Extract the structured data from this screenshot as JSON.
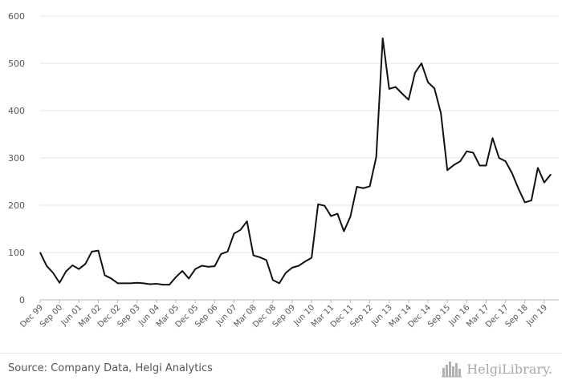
{
  "chart_data": {
    "type": "line",
    "title": "",
    "xlabel": "",
    "ylabel": "",
    "ylim": [
      0,
      600
    ],
    "yticks": [
      0,
      100,
      200,
      300,
      400,
      500,
      600
    ],
    "grid": true,
    "legend": "none",
    "x_tick_labels": [
      "Dec 99",
      "Sep 00",
      "Jun 01",
      "Mar 02",
      "Dec 02",
      "Sep 03",
      "Jun 04",
      "Mar 05",
      "Dec 05",
      "Sep 06",
      "Jun 07",
      "Mar 08",
      "Dec 08",
      "Sep 09",
      "Jun 10",
      "Mar 11",
      "Dec 11",
      "Sep 12",
      "Jun 13",
      "Mar 14",
      "Dec 14",
      "Sep 15",
      "Jun 16",
      "Mar 17",
      "Dec 17",
      "Sep 18",
      "Jun 19"
    ],
    "series": [
      {
        "color": "#111111",
        "values": [
          100,
          72,
          57,
          36,
          60,
          73,
          65,
          76,
          102,
          104,
          52,
          45,
          35,
          35,
          35,
          36,
          35,
          33,
          34,
          32,
          32,
          48,
          61,
          45,
          65,
          72,
          70,
          71,
          97,
          102,
          140,
          148,
          166,
          94,
          90,
          84,
          42,
          35,
          57,
          68,
          72,
          81,
          89,
          202,
          199,
          177,
          182,
          145,
          176,
          239,
          236,
          240,
          302,
          553,
          446,
          450,
          436,
          423,
          480,
          500,
          460,
          447,
          395,
          274,
          285,
          293,
          314,
          311,
          284,
          284,
          342,
          300,
          293,
          268,
          235,
          206,
          210,
          279,
          248,
          265
        ]
      }
    ]
  },
  "footer": {
    "source": "Source: Company Data, Helgi Analytics",
    "brand": "HelgiLibrary."
  },
  "icons": {
    "brand_logo": "skyline-icon"
  }
}
